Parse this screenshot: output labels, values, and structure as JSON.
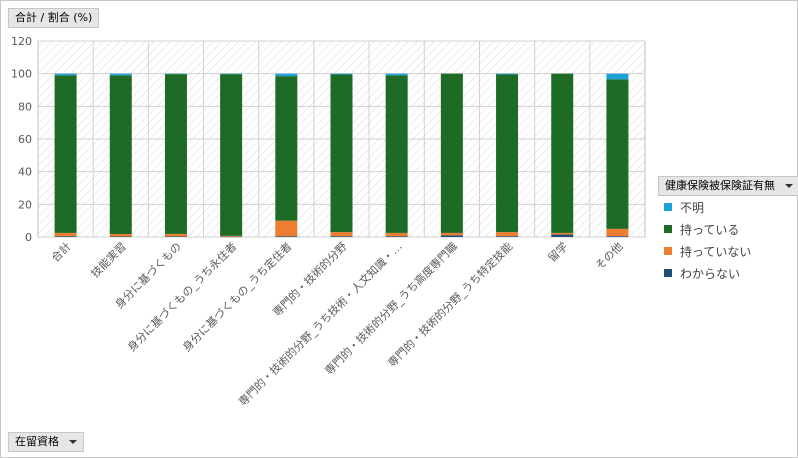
{
  "header": {
    "values_field": "合計 / 割合 (%)"
  },
  "axis_field": {
    "label": "在留資格"
  },
  "legend_field": {
    "label": "健康保険被保険証有無"
  },
  "chart_data": {
    "type": "bar",
    "stacked": true,
    "categories": [
      "合計",
      "技能実習",
      "身分に基づくもの",
      "身分に基づくもの_うち永住者",
      "身分に基づくもの_うち定住者",
      "専門的・技術的分野",
      "専門的・技術的分野_うち技術・人文知識・…",
      "専門的・技術的分野_うち高度専門職",
      "専門的・技術的分野_うち特定技能",
      "留学",
      "その他"
    ],
    "ylim": [
      0,
      120
    ],
    "yticks": [
      0,
      20,
      40,
      60,
      80,
      100,
      120
    ],
    "grid": true,
    "legend_position": "right",
    "series": [
      {
        "name": "わからない",
        "color": "#1f4e79",
        "values": [
          0.5,
          0.3,
          0.4,
          0.2,
          0.5,
          0.5,
          0.5,
          1.0,
          0.5,
          1.5,
          0.5
        ]
      },
      {
        "name": "持っていない",
        "color": "#ed7d31",
        "values": [
          2.0,
          1.5,
          1.5,
          0.5,
          9.5,
          2.5,
          2.0,
          1.5,
          2.5,
          1.0,
          4.5
        ]
      },
      {
        "name": "持っている",
        "color": "#1e6b25",
        "values": [
          96.5,
          97.2,
          97.8,
          99.0,
          88.5,
          96.5,
          96.5,
          97.5,
          96.5,
          97.5,
          91.5
        ]
      },
      {
        "name": "不明",
        "color": "#1ea0d8",
        "values": [
          1.0,
          1.0,
          0.3,
          0.3,
          1.5,
          0.5,
          1.0,
          0.0,
          0.5,
          0.0,
          3.5
        ]
      }
    ],
    "legend_order": [
      "不明",
      "持っている",
      "持っていない",
      "わからない"
    ]
  }
}
